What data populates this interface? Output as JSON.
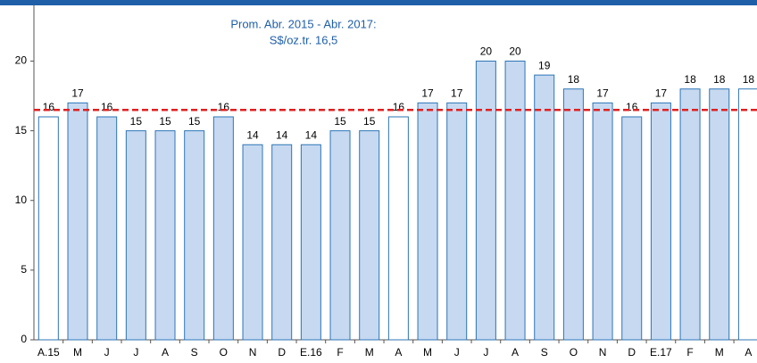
{
  "chart_data": {
    "type": "bar",
    "annotation": [
      "Prom. Abr. 2015 - Abr. 2017:",
      "S$/oz.tr. 16,5"
    ],
    "categories": [
      "A.15",
      "M",
      "J",
      "J",
      "A",
      "S",
      "O",
      "N",
      "D",
      "E.16",
      "F",
      "M",
      "A",
      "M",
      "J",
      "J",
      "A",
      "S",
      "O",
      "N",
      "D",
      "E.17",
      "F",
      "M",
      "A"
    ],
    "values": [
      16,
      17,
      16,
      15,
      15,
      15,
      16,
      14,
      14,
      14,
      15,
      15,
      16,
      17,
      17,
      20,
      20,
      19,
      18,
      17,
      16,
      17,
      18,
      18,
      18
    ],
    "colors": [
      "#ffffff",
      "#c6d9f1",
      "#c6d9f1",
      "#c6d9f1",
      "#c6d9f1",
      "#c6d9f1",
      "#c6d9f1",
      "#c6d9f1",
      "#c6d9f1",
      "#c6d9f1",
      "#c6d9f1",
      "#c6d9f1",
      "#ffffff",
      "#c6d9f1",
      "#c6d9f1",
      "#c6d9f1",
      "#c6d9f1",
      "#c6d9f1",
      "#c6d9f1",
      "#c6d9f1",
      "#c6d9f1",
      "#c6d9f1",
      "#c6d9f1",
      "#c6d9f1",
      "#ffffff"
    ],
    "edge_color": "#2e75b6",
    "reference_line": {
      "value": 16.5,
      "color": "#e02020"
    },
    "ylim": [
      0,
      24
    ],
    "yticks": [
      0,
      5,
      10,
      15,
      20
    ]
  }
}
